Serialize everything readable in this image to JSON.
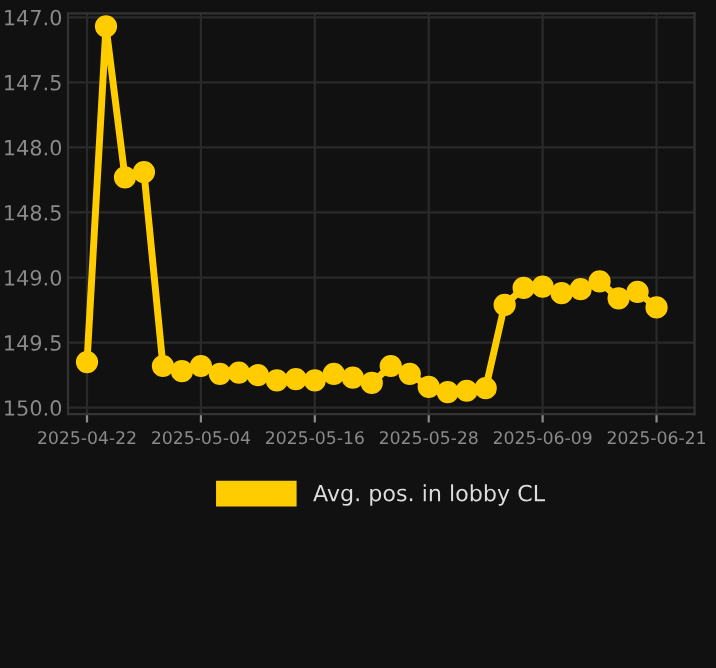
{
  "chart_data": {
    "type": "line",
    "x": [
      "2025-04-22",
      "2025-04-24",
      "2025-04-26",
      "2025-04-28",
      "2025-04-30",
      "2025-05-02",
      "2025-05-04",
      "2025-05-06",
      "2025-05-08",
      "2025-05-10",
      "2025-05-12",
      "2025-05-14",
      "2025-05-16",
      "2025-05-18",
      "2025-05-20",
      "2025-05-22",
      "2025-05-24",
      "2025-05-26",
      "2025-05-28",
      "2025-05-30",
      "2025-06-01",
      "2025-06-03",
      "2025-06-05",
      "2025-06-07",
      "2025-06-09",
      "2025-06-11",
      "2025-06-13",
      "2025-06-15",
      "2025-06-17",
      "2025-06-19",
      "2025-06-21"
    ],
    "series": [
      {
        "name": "Avg. pos. in lobby CL",
        "color": "#ffcc00",
        "values": [
          149.65,
          147.07,
          148.23,
          148.19,
          149.68,
          149.72,
          149.68,
          149.74,
          149.73,
          149.75,
          149.79,
          149.78,
          149.79,
          149.74,
          149.77,
          149.81,
          149.68,
          149.74,
          149.84,
          149.88,
          149.87,
          149.85,
          149.21,
          149.08,
          149.07,
          149.12,
          149.09,
          149.03,
          149.16,
          149.11,
          149.23
        ]
      }
    ],
    "xlim": [
      "2025-04-20",
      "2025-06-25"
    ],
    "xticks": [
      "2025-04-22",
      "2025-05-04",
      "2025-05-16",
      "2025-05-28",
      "2025-06-09",
      "2025-06-21"
    ],
    "ylim": [
      150.05,
      146.97
    ],
    "yticks": [
      {
        "value": 147,
        "label": "147.0"
      },
      {
        "value": 147.5,
        "label": "147.5"
      },
      {
        "value": 148,
        "label": "148.0"
      },
      {
        "value": 148.5,
        "label": "148.5"
      },
      {
        "value": 149,
        "label": "149.0"
      },
      {
        "value": 149.5,
        "label": "149.5"
      },
      {
        "value": 150,
        "label": "150.0"
      }
    ],
    "grid": true,
    "legend": "bottom",
    "marker": "circle",
    "line_style": "solid"
  }
}
